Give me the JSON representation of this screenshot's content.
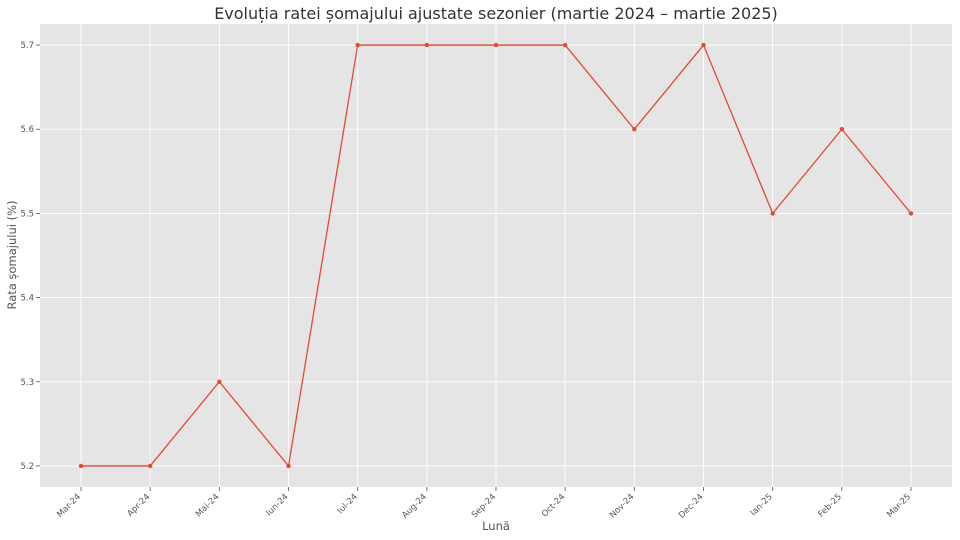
{
  "chart_data": {
    "type": "line",
    "title": "Evoluția ratei șomajului ajustate sezonier (martie 2024 – martie 2025)",
    "xlabel": "Lună",
    "ylabel": "Rata șomajului (%)",
    "categories": [
      "Mar-24",
      "Apr-24",
      "Mai-24",
      "Iun-24",
      "Iul-24",
      "Aug-24",
      "Sep-24",
      "Oct-24",
      "Nov-24",
      "Dec-24",
      "Ian-25",
      "Feb-25",
      "Mar-25"
    ],
    "series": [
      {
        "values": [
          5.2,
          5.2,
          5.3,
          5.2,
          5.7,
          5.7,
          5.7,
          5.7,
          5.6,
          5.7,
          5.5,
          5.6,
          5.5
        ]
      }
    ],
    "yticks": [
      "5.2",
      "5.3",
      "5.4",
      "5.5",
      "5.6",
      "5.7"
    ],
    "ylim": [
      5.175,
      5.725
    ],
    "grid": true,
    "legend": "none",
    "colors": {
      "line": "#E24A33",
      "plot_background": "#E5E5E5",
      "grid": "#FFFFFF"
    }
  }
}
